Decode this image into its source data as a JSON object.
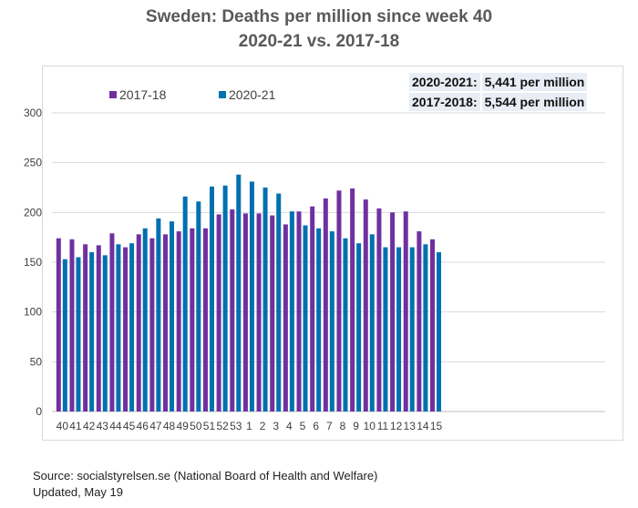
{
  "chart_data": {
    "type": "bar",
    "title": "Sweden: Deaths per million since week 40",
    "subtitle": "2020-21 vs. 2017-18",
    "xlabel": "",
    "ylabel": "",
    "ylim": [
      0,
      300
    ],
    "yticks": [
      0,
      50,
      100,
      150,
      200,
      250,
      300
    ],
    "grid": true,
    "legend_placement": "top-left",
    "categories": [
      "40",
      "41",
      "42",
      "43",
      "44",
      "45",
      "46",
      "47",
      "48",
      "49",
      "50",
      "51",
      "52",
      "53",
      "1",
      "2",
      "3",
      "4",
      "5",
      "6",
      "7",
      "8",
      "9",
      "10",
      "11",
      "12",
      "13",
      "14",
      "15"
    ],
    "series": [
      {
        "name": "2017-18",
        "color": "#7030a0",
        "values": [
          174,
          173,
          168,
          167,
          179,
          165,
          178,
          174,
          178,
          181,
          184,
          184,
          198,
          203,
          199,
          199,
          197,
          188,
          201,
          206,
          214,
          222,
          224,
          213,
          204,
          200,
          201,
          181,
          173
        ]
      },
      {
        "name": "2020-21",
        "color": "#0070b0",
        "values": [
          153,
          155,
          160,
          157,
          168,
          169,
          184,
          194,
          191,
          216,
          211,
          226,
          227,
          238,
          231,
          225,
          219,
          201,
          187,
          184,
          181,
          174,
          169,
          178,
          165,
          165,
          165,
          168,
          160
        ]
      }
    ]
  },
  "summary": [
    {
      "label": "2020-2021:",
      "value": "5,441 per million"
    },
    {
      "label": "2017-2018:",
      "value": "5,544 per million"
    }
  ],
  "source": "Source: socialstyrelsen.se (National Board of Health and Welfare)",
  "updated": "Updated, May 19"
}
